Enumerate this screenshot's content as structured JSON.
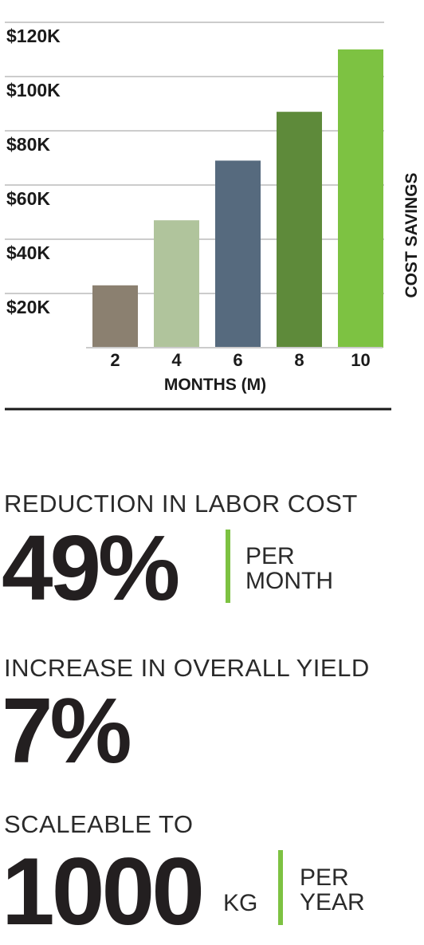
{
  "chart_data": {
    "type": "bar",
    "categories": [
      "2",
      "4",
      "6",
      "8",
      "10"
    ],
    "values": [
      23000,
      47000,
      69000,
      87000,
      110000
    ],
    "colors": [
      "#8b8070",
      "#b0c49c",
      "#566a7e",
      "#5e8a3a",
      "#7dc242"
    ],
    "xlabel": "MONTHS (M)",
    "ylabel": "COST SAVINGS",
    "ylim": [
      0,
      120000
    ],
    "yticks": [
      {
        "value": 20000,
        "label": "$20K"
      },
      {
        "value": 40000,
        "label": "$40K"
      },
      {
        "value": 60000,
        "label": "$60K"
      },
      {
        "value": 80000,
        "label": "$80K"
      },
      {
        "value": 100000,
        "label": "$100K"
      },
      {
        "value": 120000,
        "label": "$120K"
      }
    ],
    "grid": true
  },
  "stats": {
    "labor": {
      "label": "REDUCTION IN LABOR COST",
      "value": "49%",
      "unit_line1": "PER",
      "unit_line2": "MONTH"
    },
    "yield": {
      "label": "INCREASE IN OVERALL YIELD",
      "value": "7%"
    },
    "scale": {
      "label": "SCALEABLE TO",
      "value": "1000",
      "unit": "KG",
      "unit_line1": "PER",
      "unit_line2": "YEAR"
    }
  },
  "colors": {
    "accent_green": "#7dc242",
    "text_dark": "#231f20",
    "grid": "#cccccc"
  }
}
